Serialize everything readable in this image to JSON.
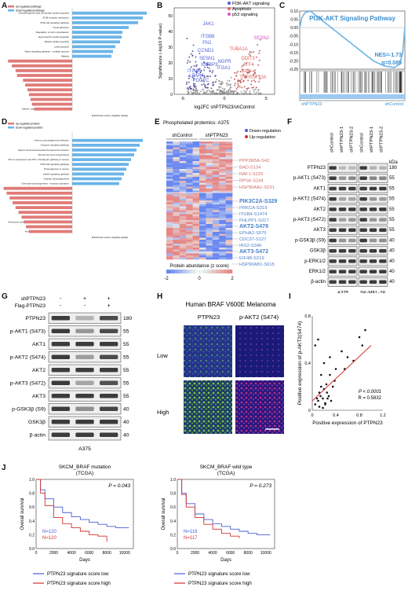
{
  "panels": {
    "A": "A",
    "B": "B",
    "C": "C",
    "D": "D",
    "E": "E",
    "F": "F",
    "G": "G",
    "H": "H",
    "I": "I",
    "J": "J"
  },
  "colors": {
    "up": "#e07a78",
    "down": "#6ab4e8",
    "pi3k": "#4a5fd6",
    "apop": "#e06060",
    "p53": "#d656c8",
    "line": "#d23030"
  },
  "A": {
    "legend": [
      "Up-regulated pathways",
      "Down-regulated pathways"
    ],
    "xlabel": "Enrichment score (-log10(p-value))",
    "chart_data": {
      "type": "bar",
      "categories": [
        "Arrhythmogenic right ventricular cardiomyopathy",
        "ECM-receptor interaction",
        "PI3K-Akt signaling pathway",
        "Focal adhesion",
        "Regulation of actin cytoskeleton",
        "Hypertrophic cardiomyopathy",
        "Dilated cardiomyopathy",
        "Leishmaniasis",
        "Hippo signaling pathway - multiple species",
        "Malaria",
        "Influenza A",
        "Fluid shear stress and atherosclerosis",
        "Cytokine-cytokine receptor interaction",
        "Transcriptional misregulation in cancer",
        "TNF signaling pathway",
        "Rheumatoid arthritis",
        "IL-17 signaling pathway",
        "p53 signaling pathway",
        "Protein digestion and absorption",
        "Apoptosis",
        "Alanine, aspartate and glutamate metabolism"
      ],
      "series": [
        {
          "name": "Down-regulated pathways",
          "values": [
            9.5,
            9.0,
            8.4,
            7.2,
            6.4,
            6.3,
            6.1,
            5.5,
            5.2,
            5.0,
            0,
            0,
            0,
            0,
            0,
            0,
            0,
            0,
            0,
            0,
            0
          ]
        },
        {
          "name": "Up-regulated pathways",
          "values": [
            0,
            0,
            0,
            0,
            0,
            0,
            0,
            0,
            0,
            0,
            8.6,
            8.1,
            7.6,
            7.4,
            6.6,
            6.3,
            6.0,
            5.8,
            5.6,
            5.4,
            5.1
          ]
        }
      ]
    }
  },
  "B": {
    "legend": [
      "PI3K-AKT signaling",
      "Apoptosis",
      "p53 signaling"
    ],
    "xlabel": "log2FC shPTPN23/shControl",
    "ylabel": "Significance (-log10 P-value)",
    "xticks": [
      "-5",
      "0",
      "5"
    ],
    "yticks": [
      "0",
      "10",
      "20",
      "30",
      "40",
      "50"
    ],
    "genes_down": [
      "JAK1",
      "ITGB8",
      "FN1",
      "CCND1",
      "SESN1",
      "IGFBP3",
      "ITGA6",
      "LPAR4",
      "PDGFC",
      "NGFR",
      "ITGA1"
    ],
    "genes_up": [
      "SESN2",
      "TUBA1A",
      "DDIT3",
      "ATF4",
      "BAX",
      "TNFRSF10A"
    ],
    "chart_data": {
      "type": "scatter",
      "title": "",
      "xlabel": "log2FC shPTPN23/shControl",
      "ylabel": "Significance (-log10 P-value)",
      "xlim": [
        -6,
        6
      ],
      "ylim": [
        0,
        55
      ]
    }
  },
  "C": {
    "title": "PI3K-AKT Signaling Pathway",
    "nes": "NES=-1.73",
    "q": "q=0.085",
    "left_label": "shPTPN23",
    "right_label": "shControl",
    "yticks": [
      "0.10",
      "0.05",
      "0.00",
      "-0.05",
      "-0.10",
      "-0.15",
      "-0.20",
      "-0.25"
    ],
    "chart_data": {
      "type": "line",
      "ylim": [
        -0.25,
        0.1
      ],
      "x": [
        0,
        2,
        5,
        10,
        20,
        30,
        40,
        50,
        60,
        70,
        80,
        90,
        95,
        98,
        100
      ],
      "values": [
        0,
        0.06,
        0.09,
        0.1,
        0.05,
        0.0,
        -0.05,
        -0.1,
        -0.15,
        -0.2,
        -0.23,
        -0.24,
        -0.22,
        -0.15,
        0
      ]
    }
  },
  "D": {
    "legend": [
      "Up-regulated proteins",
      "Down-regulated proteins"
    ],
    "xlabel": "Enrichment score (-log10(p-value))",
    "chart_data": {
      "type": "bar",
      "categories": [
        "Human cytomegalovirus infection",
        "Oxytocin signaling pathway",
        "Kaposi sarcoma-associated herpesvirus infection",
        "Steroid hormone biosynthesis",
        "PD-L1 expression and PD-1 checkpoint pathway in cancer",
        "PI3K-Akt signaling pathway",
        "Proteoglycans in cancer",
        "Apelin signaling pathway",
        "Ovarian steroidogenesis",
        "Chemical carcinogenesis - receptor activation",
        "p53 signaling pathway",
        "Natural killer cell mediated cytotoxicity",
        "Influenza A",
        "Lipid and atherosclerosis",
        "African trypanosomiasis",
        "Cytokine-cytokine receptor interaction",
        "Hepatitis B",
        "Endocrine and other factor-regulated calcium reabsorption",
        "Human cytomegalovirus infection",
        "Human immunodeficiency virus 1 infection"
      ],
      "series": [
        {
          "name": "Down-regulated proteins",
          "values": [
            9.0,
            8.6,
            8.2,
            7.9,
            7.5,
            7.2,
            6.9,
            6.6,
            6.3,
            6.0,
            0,
            0,
            0,
            0,
            0,
            0,
            0,
            0,
            0,
            0
          ]
        },
        {
          "name": "Up-regulated proteins",
          "values": [
            0,
            0,
            0,
            0,
            0,
            0,
            0,
            0,
            0,
            0,
            9.2,
            8.8,
            8.4,
            8.0,
            7.6,
            7.2,
            6.8,
            6.5,
            6.2,
            5.8
          ]
        }
      ]
    }
  },
  "E": {
    "title": "Phospholated protemics: A375",
    "cond1": "shControl",
    "cond2": "shPTPN23",
    "legend": [
      "Down-regulation",
      "Up-regulation"
    ],
    "colorbar_label": "Protein abundance (z score)",
    "colorbar_ticks": [
      "-2",
      "0",
      "2"
    ],
    "up_sites": [
      "PPP2R5A-S42",
      "BAD-S134",
      "RAF1-S220",
      "RPS6-S244",
      "HSP90AA1-S231"
    ],
    "down_sites": [
      "PIK3C2A-S329",
      "PRKCA-S319",
      "ITGB4-S1474",
      "PHLPP1-S317",
      "AKT2-S478",
      "EPHA2-S579",
      "CDC37-S127",
      "IRS2-S346",
      "AKT3-S472",
      "EIF4B-S219",
      "HSP90AB1-S615"
    ]
  },
  "F": {
    "lanes": [
      "shControl",
      "shPTPN23-1",
      "shPTPN23-2",
      "shControl",
      "shPTPN23-1",
      "shPTPN23-2"
    ],
    "kda": "kDa",
    "rows": [
      {
        "label": "PTPN23",
        "mw": "180"
      },
      {
        "label": "p-AKT1 (S473)",
        "mw": "55"
      },
      {
        "label": "AKT1",
        "mw": "55"
      },
      {
        "label": "p-AKT2 (S474)",
        "mw": "55"
      },
      {
        "label": "AKT2",
        "mw": "55"
      },
      {
        "label": "p-AKT3 (S472)",
        "mw": "55"
      },
      {
        "label": "AKT3",
        "mw": "55"
      },
      {
        "label": "p-GSK3β (S9)",
        "mw": "40"
      },
      {
        "label": "GSK3β",
        "mw": "40"
      },
      {
        "label": "p-ERK1/2",
        "mw": "40"
      },
      {
        "label": "ERK1/2",
        "mw": "40"
      },
      {
        "label": "β-actin",
        "mw": "40"
      }
    ],
    "cell1": "A375",
    "cell2": "SK-MEL-28"
  },
  "G": {
    "cond_rows": [
      {
        "label": "shPTPN23",
        "marks": [
          "-",
          "+",
          "+"
        ]
      },
      {
        "label": "Flag-PTPN23",
        "marks": [
          "-",
          "-",
          "+"
        ]
      }
    ],
    "rows": [
      {
        "label": "PTPN23",
        "mw": "180"
      },
      {
        "label": "p-AKT1 (S473)",
        "mw": "55"
      },
      {
        "label": "AKT1",
        "mw": "55"
      },
      {
        "label": "p-AKT2 (S474)",
        "mw": "55"
      },
      {
        "label": "AKT2",
        "mw": "55"
      },
      {
        "label": "p-AKT3 (S472)",
        "mw": "55"
      },
      {
        "label": "AKT3",
        "mw": "55"
      },
      {
        "label": "p-GSK3β (S9)",
        "mw": "40"
      },
      {
        "label": "GSK3β",
        "mw": "40"
      },
      {
        "label": "β-actin",
        "mw": "40"
      }
    ],
    "cell": "A375"
  },
  "H": {
    "title": "Human BRAF V600E Melanoma",
    "col1": "PTPN23",
    "col2": "p-AKT2 (S474)",
    "row1": "Low",
    "row2": "High"
  },
  "I": {
    "ylabel": "Positive expression of p-AKT2(S474)",
    "xlabel": "Positive expression of PTPN23",
    "pval": "P < 0.0001",
    "rval": "R = 0.5832",
    "xticks": [
      "0",
      "0.4",
      "0.8",
      "1.2"
    ],
    "yticks": [
      "0",
      "0.4",
      "0.8"
    ],
    "chart_data": {
      "type": "scatter",
      "xlim": [
        0,
        1.2
      ],
      "ylim": [
        0,
        0.8
      ],
      "x": [
        0.05,
        0.08,
        0.1,
        0.12,
        0.14,
        0.15,
        0.18,
        0.2,
        0.22,
        0.24,
        0.25,
        0.28,
        0.3,
        0.32,
        0.35,
        0.38,
        0.4,
        0.05,
        0.1,
        0.15,
        0.2,
        0.3,
        0.5,
        0.55,
        0.6,
        0.7,
        0.8,
        0.85,
        0.9,
        0.12,
        0.18,
        0.22,
        0.26
      ],
      "y": [
        0.05,
        0.1,
        0.08,
        0.15,
        0.12,
        0.2,
        0.1,
        0.18,
        0.05,
        0.22,
        0.15,
        0.12,
        0.3,
        0.08,
        0.2,
        0.25,
        0.35,
        0.55,
        0.6,
        0.3,
        0.4,
        0.45,
        0.5,
        0.35,
        0.45,
        0.42,
        0.62,
        0.55,
        0.68,
        0.03,
        0.02,
        0.06,
        0.1
      ],
      "fit": {
        "x": [
          0,
          1.0
        ],
        "y": [
          0.08,
          0.55
        ]
      }
    }
  },
  "J": {
    "plots": [
      {
        "title": "SKCM_BRAF mutation",
        "subtitle": "(TCGA)",
        "pval": "P = 0.043",
        "n_low": "N=120",
        "n_high": "N=120",
        "xlabel": "Days",
        "ylabel": "Overall survival",
        "xticks": [
          "0",
          "2000",
          "4000",
          "6000",
          "8000",
          "10000"
        ],
        "yticks": [
          "0.0",
          "0.2",
          "0.4",
          "0.6",
          "0.8",
          "1.0"
        ],
        "chart_data": {
          "type": "line",
          "xlim": [
            0,
            11000
          ],
          "ylim": [
            0,
            1
          ],
          "series": [
            {
              "name": "PTPN23 signature score low",
              "x": [
                0,
                500,
                1000,
                2000,
                3000,
                4000,
                5000,
                6000,
                7000,
                8000,
                9000,
                10500
              ],
              "values": [
                1,
                0.85,
                0.72,
                0.6,
                0.52,
                0.46,
                0.42,
                0.38,
                0.35,
                0.32,
                0.3,
                0.3
              ]
            },
            {
              "name": "PTPN23 signature score high",
              "x": [
                0,
                500,
                1000,
                2000,
                3000,
                4000,
                5000,
                6000,
                7000,
                8000
              ],
              "values": [
                1,
                0.8,
                0.62,
                0.45,
                0.36,
                0.3,
                0.25,
                0.2,
                0.18,
                0.1
              ]
            }
          ]
        }
      },
      {
        "title": "SKCM_BRAF wild type",
        "subtitle": "(TCGA)",
        "pval": "P = 0.273",
        "n_low": "N=116",
        "n_high": "N=117",
        "xlabel": "Days",
        "ylabel": "Overall survival",
        "xticks": [
          "0",
          "2000",
          "4000",
          "6000",
          "8000",
          "10000"
        ],
        "yticks": [
          "0.0",
          "0.2",
          "0.4",
          "0.6",
          "0.8",
          "1.0"
        ],
        "chart_data": {
          "type": "line",
          "xlim": [
            0,
            11000
          ],
          "ylim": [
            0,
            1
          ],
          "series": [
            {
              "name": "PTPN23 signature score low",
              "x": [
                0,
                500,
                1000,
                2000,
                3000,
                4000,
                5000,
                6000,
                7000,
                8000,
                9000,
                10500
              ],
              "values": [
                1,
                0.8,
                0.65,
                0.5,
                0.42,
                0.36,
                0.32,
                0.28,
                0.25,
                0.22,
                0.2,
                0.2
              ]
            },
            {
              "name": "PTPN23 signature score high",
              "x": [
                0,
                500,
                1000,
                2000,
                3000,
                4000,
                5000,
                6000,
                7000
              ],
              "values": [
                1,
                0.78,
                0.6,
                0.45,
                0.35,
                0.28,
                0.22,
                0.18,
                0.15
              ]
            }
          ]
        }
      }
    ],
    "legend": [
      "PTPN23 signature score low",
      "PTPN23 signature score high"
    ]
  }
}
